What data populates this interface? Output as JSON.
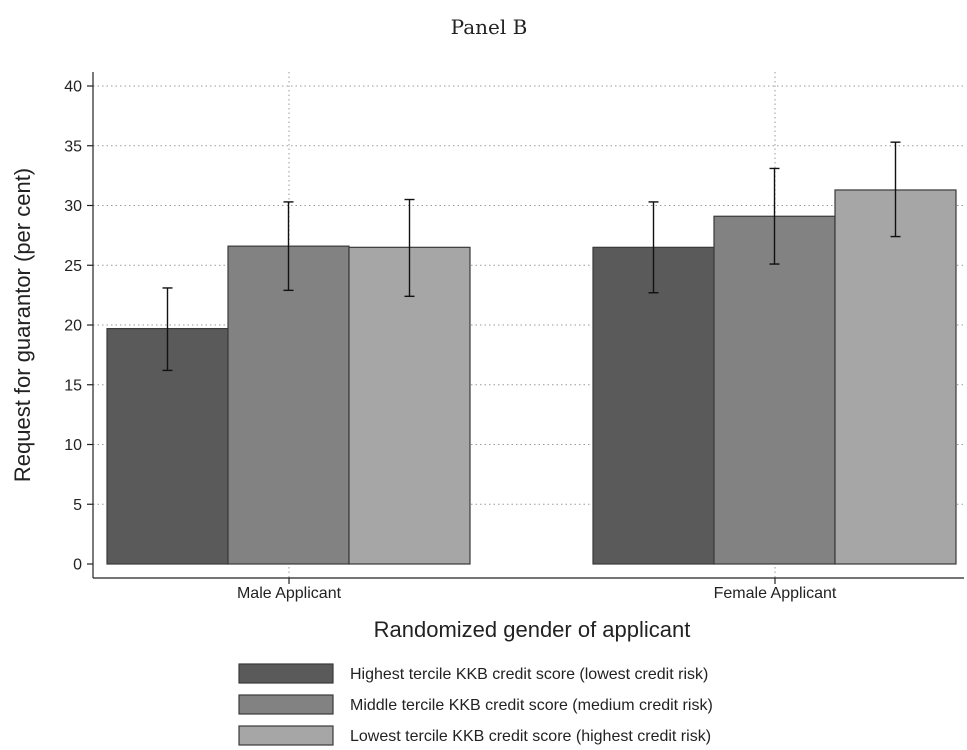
{
  "chart_data": {
    "type": "bar",
    "title": "Panel B",
    "xlabel": "Randomized gender of applicant",
    "ylabel": "Request for guarantor (per cent)",
    "ylim": [
      0,
      40
    ],
    "yticks": [
      0,
      5,
      10,
      15,
      20,
      25,
      30,
      35,
      40
    ],
    "categories": [
      "Male Applicant",
      "Female Applicant"
    ],
    "grid": true,
    "legend_position": "bottom",
    "series": [
      {
        "name": "Highest tercile KKB credit score (lowest credit risk)",
        "color": "#5a5a5a",
        "values": [
          19.7,
          26.5
        ],
        "ci_low": [
          16.2,
          22.7
        ],
        "ci_high": [
          23.1,
          30.3
        ]
      },
      {
        "name": "Middle tercile KKB credit score (medium credit risk)",
        "color": "#828282",
        "values": [
          26.6,
          29.1
        ],
        "ci_low": [
          22.9,
          25.1
        ],
        "ci_high": [
          30.3,
          33.1
        ]
      },
      {
        "name": "Lowest tercile KKB credit score (highest credit risk)",
        "color": "#a6a6a6",
        "values": [
          26.5,
          31.3
        ],
        "ci_low": [
          22.4,
          27.4
        ],
        "ci_high": [
          30.5,
          35.3
        ]
      }
    ]
  }
}
